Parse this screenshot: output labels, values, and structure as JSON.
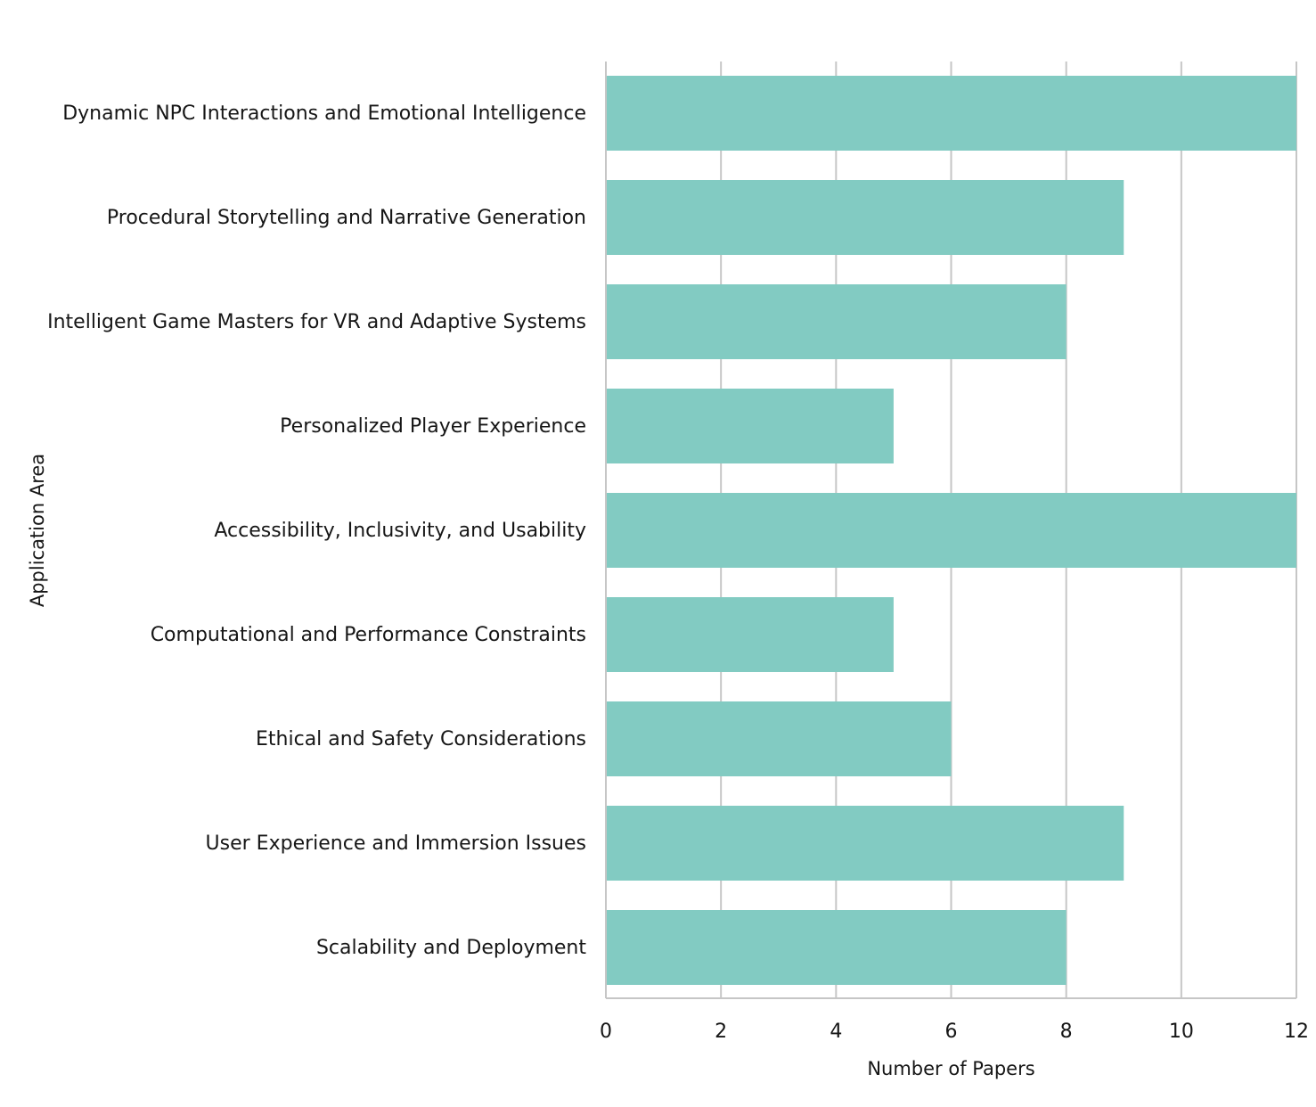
{
  "chart_data": {
    "type": "bar",
    "orientation": "horizontal",
    "categories": [
      "Dynamic NPC Interactions and Emotional Intelligence",
      "Procedural Storytelling and Narrative Generation",
      "Intelligent Game Masters for VR and Adaptive Systems",
      "Personalized Player Experience",
      "Accessibility, Inclusivity, and Usability",
      "Computational and Performance Constraints",
      "Ethical and Safety Considerations",
      "User Experience and Immersion Issues",
      "Scalability and Deployment"
    ],
    "values": [
      12,
      9,
      8,
      5,
      12,
      5,
      6,
      9,
      8
    ],
    "xlabel": "Number of Papers",
    "ylabel": "Application Area",
    "xlim": [
      0,
      12
    ],
    "xticks": [
      0,
      2,
      4,
      6,
      8,
      10,
      12
    ],
    "grid": true,
    "bar_color": "#82cbc2"
  }
}
